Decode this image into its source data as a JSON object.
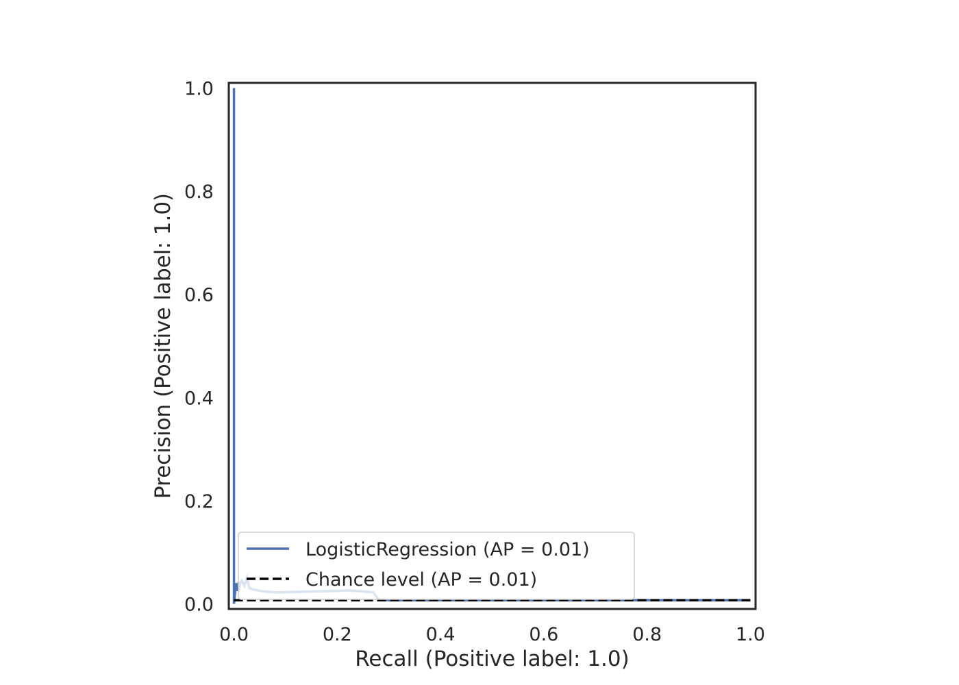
{
  "chart_data": {
    "type": "line",
    "title": "",
    "xlabel": "Recall (Positive label: 1.0)",
    "ylabel": "Precision (Positive label: 1.0)",
    "xlim": [
      -0.01,
      1.01
    ],
    "ylim": [
      -0.01,
      1.01
    ],
    "xticks": [
      "0.0",
      "0.2",
      "0.4",
      "0.6",
      "0.8",
      "1.0"
    ],
    "yticks": [
      "0.0",
      "0.2",
      "0.4",
      "0.6",
      "0.8",
      "1.0"
    ],
    "grid": false,
    "legend_position": "lower-left",
    "series": [
      {
        "name": "LogisticRegression (AP = 0.01)",
        "style": "solid",
        "color": "#4c72b0",
        "x": [
          0.0,
          0.0,
          0.0,
          0.002,
          0.004,
          0.006,
          0.008,
          0.01,
          0.012,
          0.015,
          0.02,
          0.025,
          0.03,
          0.05,
          0.08,
          0.12,
          0.16,
          0.2,
          0.22,
          0.25,
          0.27,
          0.275,
          0.28,
          0.3,
          0.4,
          0.5,
          0.6,
          0.7,
          0.8,
          0.9,
          1.0
        ],
        "y": [
          1.0,
          0.5,
          0.0,
          0.02,
          0.04,
          0.025,
          0.035,
          0.03,
          0.04,
          0.045,
          0.035,
          0.05,
          0.03,
          0.025,
          0.022,
          0.023,
          0.024,
          0.025,
          0.026,
          0.024,
          0.022,
          0.015,
          0.008,
          0.007,
          0.007,
          0.007,
          0.007,
          0.007,
          0.007,
          0.007,
          0.007
        ]
      },
      {
        "name": "Chance level (AP = 0.01)",
        "style": "dashed",
        "color": "#000000",
        "x": [
          0.0,
          1.0
        ],
        "y": [
          0.007,
          0.007
        ]
      }
    ]
  }
}
